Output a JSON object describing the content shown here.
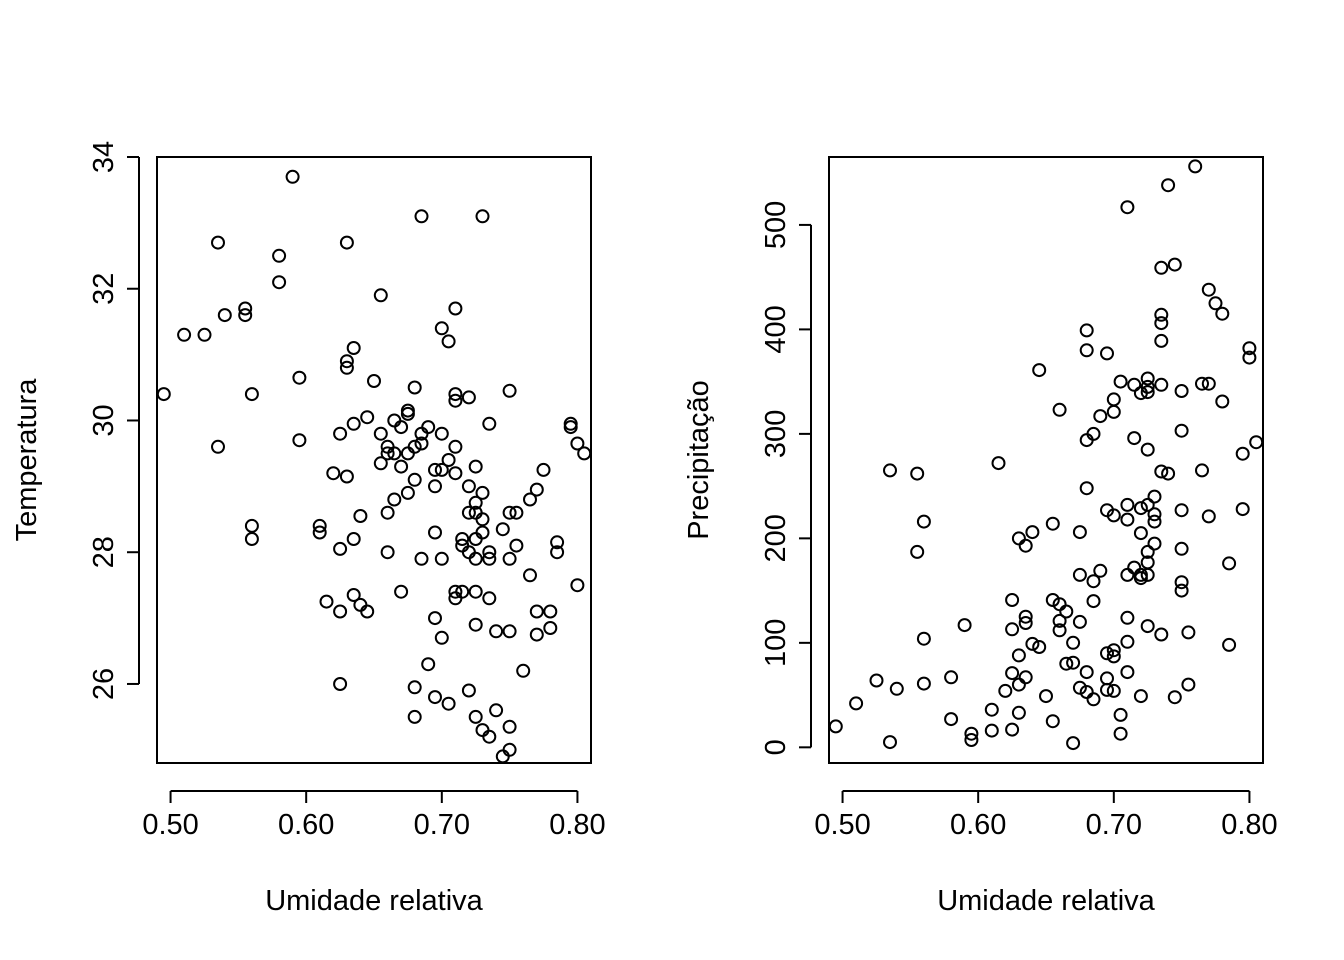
{
  "chart_data": [
    {
      "type": "scatter",
      "xlabel": "Umidade relativa",
      "ylabel": "Temperatura",
      "xlim": [
        0.49,
        0.81
      ],
      "ylim": [
        24.8,
        34.0
      ],
      "xticks": [
        0.5,
        0.6,
        0.7,
        0.8
      ],
      "xtick_labels": [
        "0.50",
        "0.60",
        "0.70",
        "0.80"
      ],
      "yticks": [
        26,
        28,
        30,
        32,
        34
      ],
      "ytick_labels": [
        "26",
        "28",
        "30",
        "32",
        "34"
      ],
      "grid": false,
      "points": [
        [
          0.495,
          30.4
        ],
        [
          0.51,
          31.3
        ],
        [
          0.525,
          31.3
        ],
        [
          0.535,
          32.7
        ],
        [
          0.535,
          29.6
        ],
        [
          0.54,
          31.6
        ],
        [
          0.555,
          31.7
        ],
        [
          0.555,
          31.6
        ],
        [
          0.56,
          30.4
        ],
        [
          0.56,
          28.4
        ],
        [
          0.56,
          28.2
        ],
        [
          0.58,
          32.5
        ],
        [
          0.58,
          32.1
        ],
        [
          0.59,
          33.7
        ],
        [
          0.595,
          30.65
        ],
        [
          0.595,
          29.7
        ],
        [
          0.61,
          28.4
        ],
        [
          0.61,
          28.3
        ],
        [
          0.615,
          27.25
        ],
        [
          0.62,
          29.2
        ],
        [
          0.625,
          29.8
        ],
        [
          0.625,
          28.05
        ],
        [
          0.625,
          27.1
        ],
        [
          0.625,
          26.0
        ],
        [
          0.63,
          32.7
        ],
        [
          0.63,
          30.9
        ],
        [
          0.63,
          30.8
        ],
        [
          0.63,
          29.15
        ],
        [
          0.635,
          31.1
        ],
        [
          0.635,
          29.95
        ],
        [
          0.635,
          28.2
        ],
        [
          0.635,
          27.35
        ],
        [
          0.64,
          28.55
        ],
        [
          0.64,
          27.2
        ],
        [
          0.645,
          30.05
        ],
        [
          0.645,
          27.1
        ],
        [
          0.65,
          30.6
        ],
        [
          0.655,
          31.9
        ],
        [
          0.655,
          29.8
        ],
        [
          0.655,
          29.35
        ],
        [
          0.66,
          29.6
        ],
        [
          0.66,
          29.5
        ],
        [
          0.66,
          28.6
        ],
        [
          0.66,
          28.0
        ],
        [
          0.665,
          30.0
        ],
        [
          0.665,
          29.5
        ],
        [
          0.665,
          28.8
        ],
        [
          0.67,
          29.9
        ],
        [
          0.67,
          29.3
        ],
        [
          0.67,
          27.4
        ],
        [
          0.675,
          30.15
        ],
        [
          0.675,
          30.1
        ],
        [
          0.675,
          29.5
        ],
        [
          0.675,
          28.9
        ],
        [
          0.68,
          30.5
        ],
        [
          0.68,
          29.6
        ],
        [
          0.68,
          29.1
        ],
        [
          0.68,
          25.95
        ],
        [
          0.68,
          25.5
        ],
        [
          0.685,
          33.1
        ],
        [
          0.685,
          29.8
        ],
        [
          0.685,
          29.65
        ],
        [
          0.685,
          27.9
        ],
        [
          0.69,
          29.9
        ],
        [
          0.69,
          26.3
        ],
        [
          0.695,
          29.25
        ],
        [
          0.695,
          29.0
        ],
        [
          0.695,
          28.3
        ],
        [
          0.695,
          27.0
        ],
        [
          0.695,
          25.8
        ],
        [
          0.7,
          31.4
        ],
        [
          0.7,
          29.8
        ],
        [
          0.7,
          29.25
        ],
        [
          0.7,
          27.9
        ],
        [
          0.7,
          26.7
        ],
        [
          0.705,
          31.2
        ],
        [
          0.705,
          29.4
        ],
        [
          0.705,
          25.7
        ],
        [
          0.71,
          31.7
        ],
        [
          0.71,
          30.4
        ],
        [
          0.71,
          30.3
        ],
        [
          0.71,
          29.6
        ],
        [
          0.71,
          29.2
        ],
        [
          0.71,
          27.4
        ],
        [
          0.71,
          27.3
        ],
        [
          0.715,
          28.2
        ],
        [
          0.715,
          28.1
        ],
        [
          0.715,
          27.4
        ],
        [
          0.72,
          30.35
        ],
        [
          0.72,
          29.0
        ],
        [
          0.72,
          28.6
        ],
        [
          0.72,
          28.0
        ],
        [
          0.72,
          25.9
        ],
        [
          0.725,
          29.3
        ],
        [
          0.725,
          28.75
        ],
        [
          0.725,
          28.6
        ],
        [
          0.725,
          28.2
        ],
        [
          0.725,
          27.9
        ],
        [
          0.725,
          27.4
        ],
        [
          0.725,
          26.9
        ],
        [
          0.725,
          25.5
        ],
        [
          0.73,
          33.1
        ],
        [
          0.73,
          28.9
        ],
        [
          0.73,
          28.5
        ],
        [
          0.73,
          28.3
        ],
        [
          0.73,
          25.3
        ],
        [
          0.735,
          29.95
        ],
        [
          0.735,
          28.0
        ],
        [
          0.735,
          27.9
        ],
        [
          0.735,
          27.3
        ],
        [
          0.735,
          25.2
        ],
        [
          0.74,
          26.8
        ],
        [
          0.74,
          25.6
        ],
        [
          0.745,
          28.35
        ],
        [
          0.745,
          24.9
        ],
        [
          0.75,
          30.45
        ],
        [
          0.75,
          28.6
        ],
        [
          0.75,
          27.9
        ],
        [
          0.75,
          26.8
        ],
        [
          0.75,
          25.35
        ],
        [
          0.75,
          25.0
        ],
        [
          0.755,
          28.6
        ],
        [
          0.755,
          28.1
        ],
        [
          0.76,
          26.2
        ],
        [
          0.765,
          28.8
        ],
        [
          0.765,
          27.65
        ],
        [
          0.77,
          28.95
        ],
        [
          0.77,
          27.1
        ],
        [
          0.77,
          26.75
        ],
        [
          0.775,
          29.25
        ],
        [
          0.78,
          27.1
        ],
        [
          0.78,
          26.85
        ],
        [
          0.785,
          28.15
        ],
        [
          0.785,
          28.0
        ],
        [
          0.795,
          29.95
        ],
        [
          0.795,
          29.9
        ],
        [
          0.8,
          29.65
        ],
        [
          0.8,
          27.5
        ],
        [
          0.805,
          29.5
        ]
      ]
    },
    {
      "type": "scatter",
      "xlabel": "Umidade relativa",
      "ylabel": "Precipitação",
      "xlim": [
        0.49,
        0.81
      ],
      "ylim": [
        -15,
        565
      ],
      "xticks": [
        0.5,
        0.6,
        0.7,
        0.8
      ],
      "xtick_labels": [
        "0.50",
        "0.60",
        "0.70",
        "0.80"
      ],
      "yticks": [
        0,
        100,
        200,
        300,
        400,
        500
      ],
      "ytick_labels": [
        "0",
        "100",
        "200",
        "300",
        "400",
        "500"
      ],
      "grid": false,
      "points": [
        [
          0.495,
          20
        ],
        [
          0.51,
          42
        ],
        [
          0.525,
          64
        ],
        [
          0.535,
          265
        ],
        [
          0.535,
          5
        ],
        [
          0.54,
          56
        ],
        [
          0.555,
          262
        ],
        [
          0.555,
          187
        ],
        [
          0.56,
          216
        ],
        [
          0.56,
          104
        ],
        [
          0.56,
          61
        ],
        [
          0.58,
          67
        ],
        [
          0.58,
          27
        ],
        [
          0.59,
          117
        ],
        [
          0.595,
          13
        ],
        [
          0.595,
          7
        ],
        [
          0.61,
          36
        ],
        [
          0.61,
          16
        ],
        [
          0.615,
          272
        ],
        [
          0.62,
          54
        ],
        [
          0.625,
          141
        ],
        [
          0.625,
          113
        ],
        [
          0.625,
          71
        ],
        [
          0.625,
          17
        ],
        [
          0.63,
          200
        ],
        [
          0.63,
          88
        ],
        [
          0.63,
          60
        ],
        [
          0.63,
          33
        ],
        [
          0.635,
          193
        ],
        [
          0.635,
          125
        ],
        [
          0.635,
          119
        ],
        [
          0.635,
          67
        ],
        [
          0.64,
          206
        ],
        [
          0.64,
          99
        ],
        [
          0.645,
          361
        ],
        [
          0.645,
          96
        ],
        [
          0.65,
          49
        ],
        [
          0.655,
          214
        ],
        [
          0.655,
          141
        ],
        [
          0.655,
          25
        ],
        [
          0.66,
          323
        ],
        [
          0.66,
          137
        ],
        [
          0.66,
          121
        ],
        [
          0.66,
          112
        ],
        [
          0.665,
          130
        ],
        [
          0.665,
          80
        ],
        [
          0.67,
          100
        ],
        [
          0.67,
          81
        ],
        [
          0.67,
          4
        ],
        [
          0.675,
          206
        ],
        [
          0.675,
          165
        ],
        [
          0.675,
          120
        ],
        [
          0.675,
          57
        ],
        [
          0.68,
          399
        ],
        [
          0.68,
          380
        ],
        [
          0.68,
          294
        ],
        [
          0.68,
          248
        ],
        [
          0.68,
          72
        ],
        [
          0.68,
          53
        ],
        [
          0.685,
          300
        ],
        [
          0.685,
          159
        ],
        [
          0.685,
          140
        ],
        [
          0.685,
          46
        ],
        [
          0.69,
          317
        ],
        [
          0.69,
          169
        ],
        [
          0.695,
          377
        ],
        [
          0.695,
          227
        ],
        [
          0.695,
          90
        ],
        [
          0.695,
          66
        ],
        [
          0.695,
          55
        ],
        [
          0.7,
          333
        ],
        [
          0.7,
          321
        ],
        [
          0.7,
          222
        ],
        [
          0.7,
          93
        ],
        [
          0.7,
          87
        ],
        [
          0.7,
          54
        ],
        [
          0.705,
          350
        ],
        [
          0.705,
          31
        ],
        [
          0.705,
          13
        ],
        [
          0.71,
          517
        ],
        [
          0.71,
          232
        ],
        [
          0.71,
          218
        ],
        [
          0.71,
          165
        ],
        [
          0.71,
          124
        ],
        [
          0.71,
          101
        ],
        [
          0.71,
          72
        ],
        [
          0.715,
          347
        ],
        [
          0.715,
          296
        ],
        [
          0.715,
          172
        ],
        [
          0.72,
          339
        ],
        [
          0.72,
          229
        ],
        [
          0.72,
          205
        ],
        [
          0.72,
          165
        ],
        [
          0.72,
          162
        ],
        [
          0.72,
          49
        ],
        [
          0.725,
          353
        ],
        [
          0.725,
          345
        ],
        [
          0.725,
          340
        ],
        [
          0.725,
          285
        ],
        [
          0.725,
          232
        ],
        [
          0.725,
          187
        ],
        [
          0.725,
          177
        ],
        [
          0.725,
          165
        ],
        [
          0.725,
          116
        ],
        [
          0.73,
          240
        ],
        [
          0.73,
          223
        ],
        [
          0.73,
          216
        ],
        [
          0.73,
          195
        ],
        [
          0.735,
          459
        ],
        [
          0.735,
          414
        ],
        [
          0.735,
          406
        ],
        [
          0.735,
          389
        ],
        [
          0.735,
          347
        ],
        [
          0.735,
          264
        ],
        [
          0.735,
          108
        ],
        [
          0.74,
          538
        ],
        [
          0.74,
          262
        ],
        [
          0.745,
          462
        ],
        [
          0.745,
          48
        ],
        [
          0.75,
          341
        ],
        [
          0.75,
          303
        ],
        [
          0.75,
          227
        ],
        [
          0.75,
          190
        ],
        [
          0.75,
          158
        ],
        [
          0.75,
          150
        ],
        [
          0.755,
          110
        ],
        [
          0.755,
          60
        ],
        [
          0.76,
          556
        ],
        [
          0.765,
          348
        ],
        [
          0.765,
          265
        ],
        [
          0.77,
          438
        ],
        [
          0.77,
          348
        ],
        [
          0.77,
          221
        ],
        [
          0.775,
          425
        ],
        [
          0.78,
          415
        ],
        [
          0.78,
          331
        ],
        [
          0.785,
          176
        ],
        [
          0.785,
          98
        ],
        [
          0.795,
          281
        ],
        [
          0.795,
          228
        ],
        [
          0.8,
          382
        ],
        [
          0.8,
          373
        ],
        [
          0.805,
          292
        ]
      ]
    }
  ]
}
